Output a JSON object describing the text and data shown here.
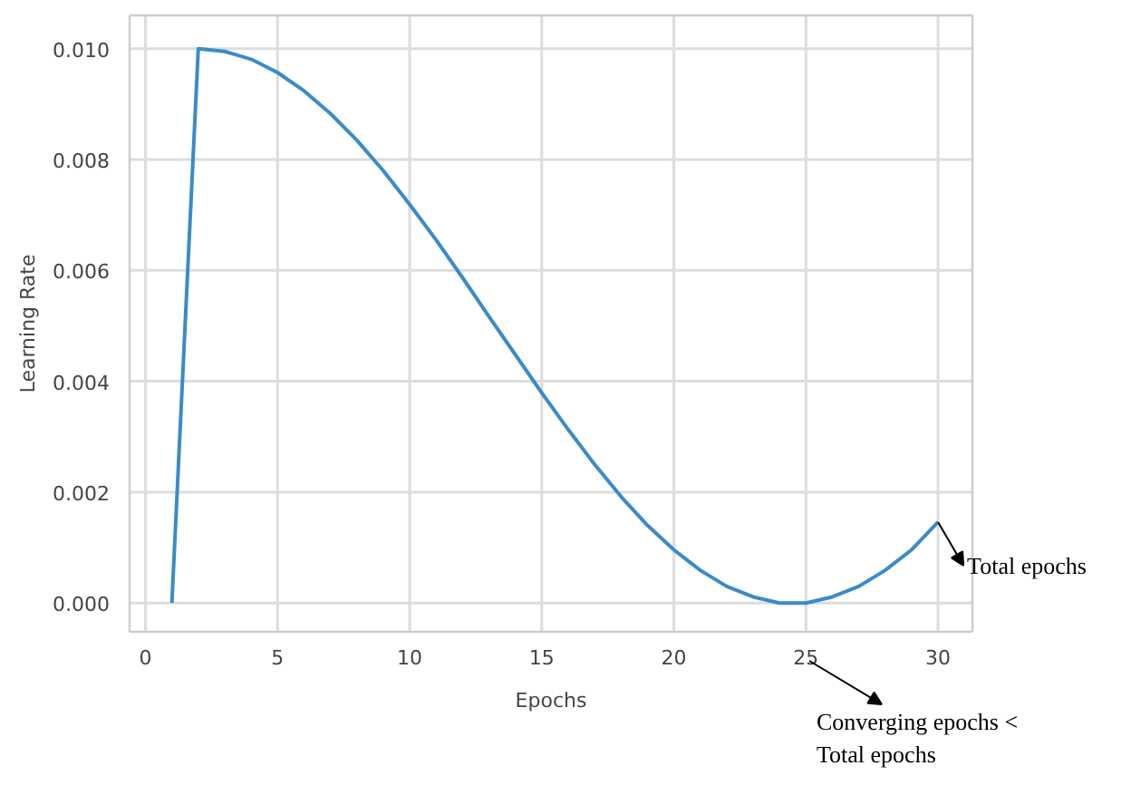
{
  "chart_data": {
    "type": "line",
    "xlabel": "Epochs",
    "ylabel": "Learning Rate",
    "x": [
      1,
      2,
      3,
      4,
      5,
      6,
      7,
      8,
      9,
      10,
      11,
      12,
      13,
      14,
      15,
      16,
      17,
      18,
      19,
      20,
      21,
      22,
      23,
      24,
      25,
      26,
      27,
      28,
      29,
      30
    ],
    "series": [
      {
        "color": "#3b8bc8",
        "values": [
          0.0,
          0.01,
          0.00995,
          0.00981,
          0.00957,
          0.00924,
          0.00883,
          0.00835,
          0.0078,
          0.00719,
          0.00655,
          0.00587,
          0.00517,
          0.00448,
          0.00379,
          0.00313,
          0.0025,
          0.00192,
          0.0014,
          0.00096,
          0.00059,
          0.0003,
          0.00011,
          0.0,
          0.0,
          0.00011,
          0.0003,
          0.00059,
          0.00096,
          0.00146
        ]
      }
    ],
    "xlim": [
      -0.6,
      31.3
    ],
    "ylim": [
      -0.00052,
      0.0106
    ],
    "xticks": [
      0,
      5,
      10,
      15,
      20,
      25,
      30
    ],
    "yticks": [
      {
        "value": 0,
        "label": "0.000"
      },
      {
        "value": 0.002,
        "label": "0.002"
      },
      {
        "value": 0.004,
        "label": "0.004"
      },
      {
        "value": 0.006,
        "label": "0.006"
      },
      {
        "value": 0.008,
        "label": "0.008"
      },
      {
        "value": 0.01,
        "label": "0.010"
      }
    ],
    "grid": true,
    "marker": "none",
    "line_style": "solid",
    "annotations": [
      {
        "text": "Total epochs",
        "x": 30,
        "y": 0.00146
      },
      "Converging epochs <\nTotal epochs"
    ]
  }
}
